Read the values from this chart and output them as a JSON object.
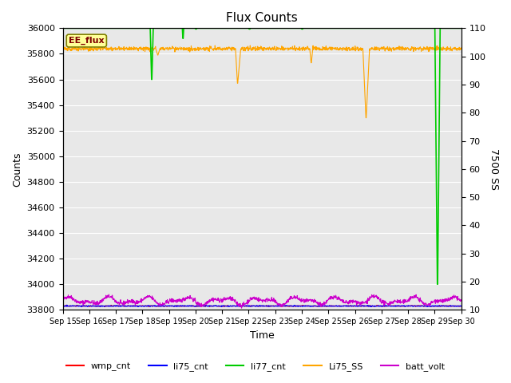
{
  "title": "Flux Counts",
  "xlabel": "Time",
  "ylabel_left": "Counts",
  "ylabel_right": "7500 SS",
  "annotation_text": "EE_flux",
  "annotation_box_color": "#ffff99",
  "annotation_border_color": "#808000",
  "annotation_text_color": "#800000",
  "x_tick_labels": [
    "Sep 15",
    "Sep 16",
    "Sep 17",
    "Sep 18",
    "Sep 19",
    "Sep 20",
    "Sep 21",
    "Sep 22",
    "Sep 23",
    "Sep 24",
    "Sep 25",
    "Sep 26",
    "Sep 27",
    "Sep 28",
    "Sep 29",
    "Sep 30"
  ],
  "ylim_left": [
    33800,
    36000
  ],
  "ylim_right": [
    10,
    110
  ],
  "yticks_left": [
    33800,
    34000,
    34200,
    34400,
    34600,
    34800,
    35000,
    35200,
    35400,
    35600,
    35800,
    36000
  ],
  "yticks_right": [
    10,
    20,
    30,
    40,
    50,
    60,
    70,
    80,
    90,
    100,
    110
  ],
  "background_color": "#e8e8e8",
  "grid_color": "#ffffff",
  "series": {
    "wmp_cnt": {
      "color": "#ff0000",
      "lw": 0.8
    },
    "li75_cnt": {
      "color": "#0000ff",
      "lw": 0.8
    },
    "li77_cnt": {
      "color": "#00cc00",
      "lw": 1.2
    },
    "Li75_SS": {
      "color": "#ffa500",
      "lw": 0.8
    },
    "batt_volt": {
      "color": "#cc00cc",
      "lw": 0.8
    }
  }
}
